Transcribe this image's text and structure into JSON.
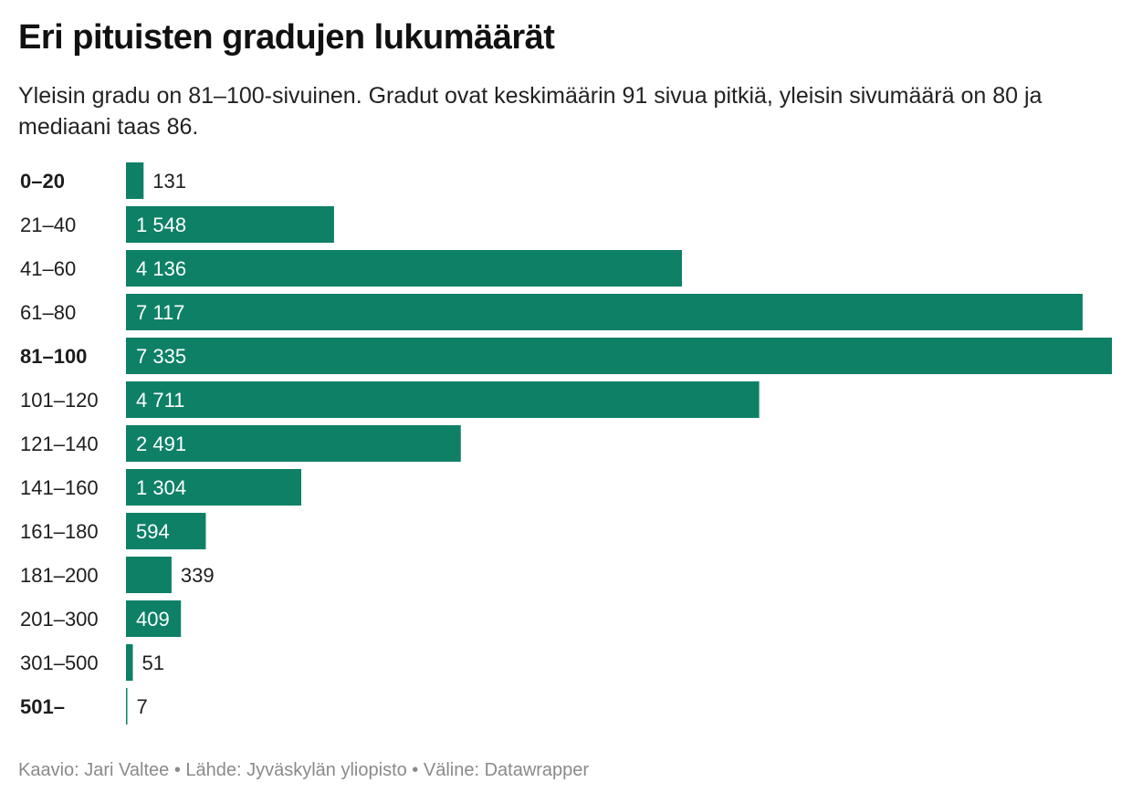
{
  "header": {
    "title": "Eri pituisten gradujen lukumäärät",
    "subtitle": "Yleisin gradu on 81–100-sivuinen. Gradut ovat keskimäärin 91 sivua pitkiä, yleisin sivumäärä on 80 ja mediaani taas 86."
  },
  "footer": {
    "credit": "Kaavio: Jari Valtee • Lähde: Jyväskylän yliopisto • Väline: Datawrapper"
  },
  "colors": {
    "bar": "#0d8066",
    "label_inside": "#ffffff",
    "label_outside": "#1d1d1d"
  },
  "chart_data": {
    "type": "bar",
    "orientation": "horizontal",
    "categories": [
      "0–20",
      "21–40",
      "41–60",
      "61–80",
      "81–100",
      "101–120",
      "121–140",
      "141–160",
      "161–180",
      "181–200",
      "201–300",
      "301–500",
      "501–"
    ],
    "values": [
      131,
      1548,
      4136,
      7117,
      7335,
      4711,
      2491,
      1304,
      594,
      339,
      409,
      51,
      7
    ],
    "value_labels": [
      "131",
      "1 548",
      "4 136",
      "7 117",
      "7 335",
      "4 711",
      "2 491",
      "1 304",
      "594",
      "339",
      "409",
      "51",
      "7"
    ],
    "bold_categories": [
      "0–20",
      "81–100",
      "501–"
    ],
    "xlim": [
      0,
      7335
    ],
    "grid": false,
    "legend": "none"
  }
}
